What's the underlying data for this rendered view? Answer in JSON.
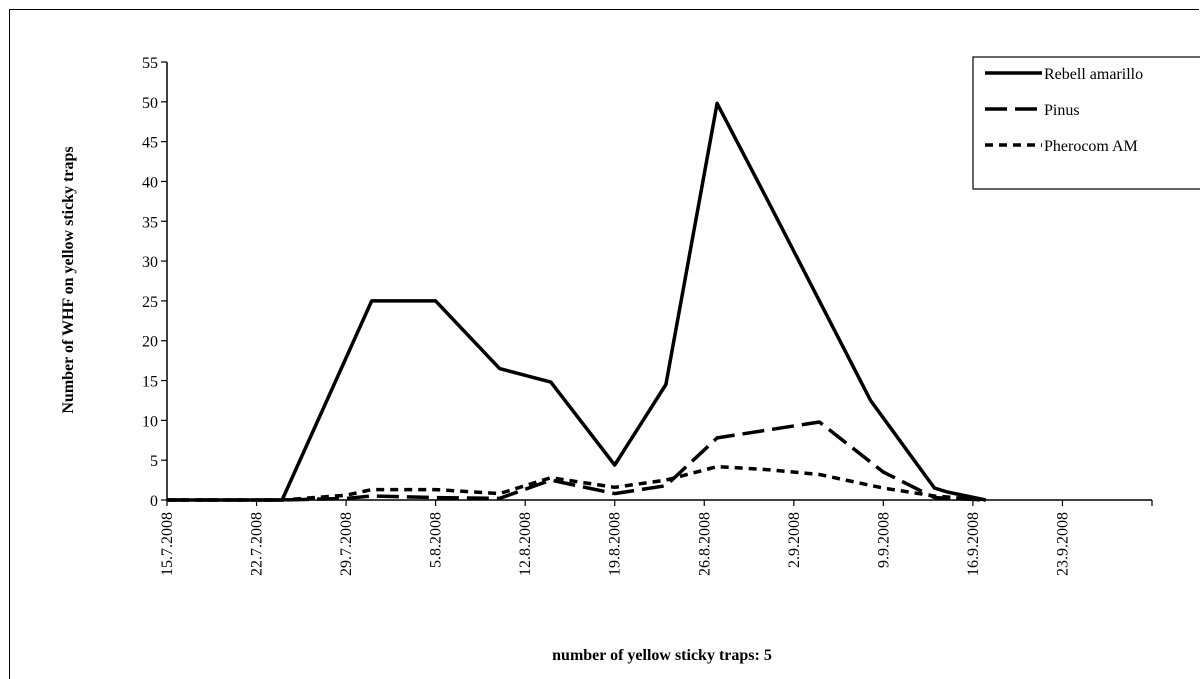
{
  "chart_data": {
    "type": "line",
    "xlabel": "number of yellow sticky traps: 5",
    "ylabel": "Number of  WHF  on yellow sticky traps",
    "ylim": [
      0,
      55
    ],
    "yticks": [
      0,
      5,
      10,
      15,
      20,
      25,
      30,
      35,
      40,
      45,
      50,
      55
    ],
    "x_tick_labels": [
      "15.7.2008",
      "22.7.2008",
      "29.7.2008",
      "5.8.2008",
      "12.8.2008",
      "19.8.2008",
      "26.8.2008",
      "2.9.2008",
      "9.9.2008",
      "16.9.2008",
      "23.9.2008"
    ],
    "x_tick_days": [
      0,
      7,
      14,
      21,
      28,
      35,
      42,
      49,
      56,
      63,
      70
    ],
    "x_range_days": [
      0,
      77
    ],
    "grid": false,
    "legend_position": "top-right",
    "series": [
      {
        "name": "Rebell amarillo",
        "style": "solid",
        "points": [
          [
            0,
            0
          ],
          [
            9,
            0
          ],
          [
            16,
            25
          ],
          [
            21,
            25
          ],
          [
            26,
            16.5
          ],
          [
            30,
            14.8
          ],
          [
            35,
            4.4
          ],
          [
            39,
            14.5
          ],
          [
            43,
            49.8
          ],
          [
            47,
            37.5
          ],
          [
            51,
            25
          ],
          [
            55,
            12.5
          ],
          [
            60,
            1.5
          ],
          [
            61,
            1
          ],
          [
            64,
            0
          ]
        ]
      },
      {
        "name": "Pinus",
        "style": "dashed",
        "points": [
          [
            0,
            0
          ],
          [
            9,
            0
          ],
          [
            14,
            0.2
          ],
          [
            16,
            0.5
          ],
          [
            21,
            0.3
          ],
          [
            26,
            0.2
          ],
          [
            30,
            2.5
          ],
          [
            35,
            0.8
          ],
          [
            39,
            1.8
          ],
          [
            43,
            7.8
          ],
          [
            47,
            8.8
          ],
          [
            51,
            9.8
          ],
          [
            56,
            3.5
          ],
          [
            60,
            0.3
          ],
          [
            64,
            0
          ]
        ]
      },
      {
        "name": "Pherocom AM",
        "style": "dotted",
        "points": [
          [
            0,
            0
          ],
          [
            9,
            0
          ],
          [
            14,
            0.6
          ],
          [
            16,
            1.3
          ],
          [
            21,
            1.3
          ],
          [
            26,
            0.8
          ],
          [
            30,
            2.8
          ],
          [
            35,
            1.6
          ],
          [
            39,
            2.5
          ],
          [
            43,
            4.2
          ],
          [
            47,
            3.8
          ],
          [
            51,
            3.2
          ],
          [
            56,
            1.5
          ],
          [
            60,
            0.5
          ],
          [
            64,
            0
          ]
        ]
      }
    ]
  }
}
